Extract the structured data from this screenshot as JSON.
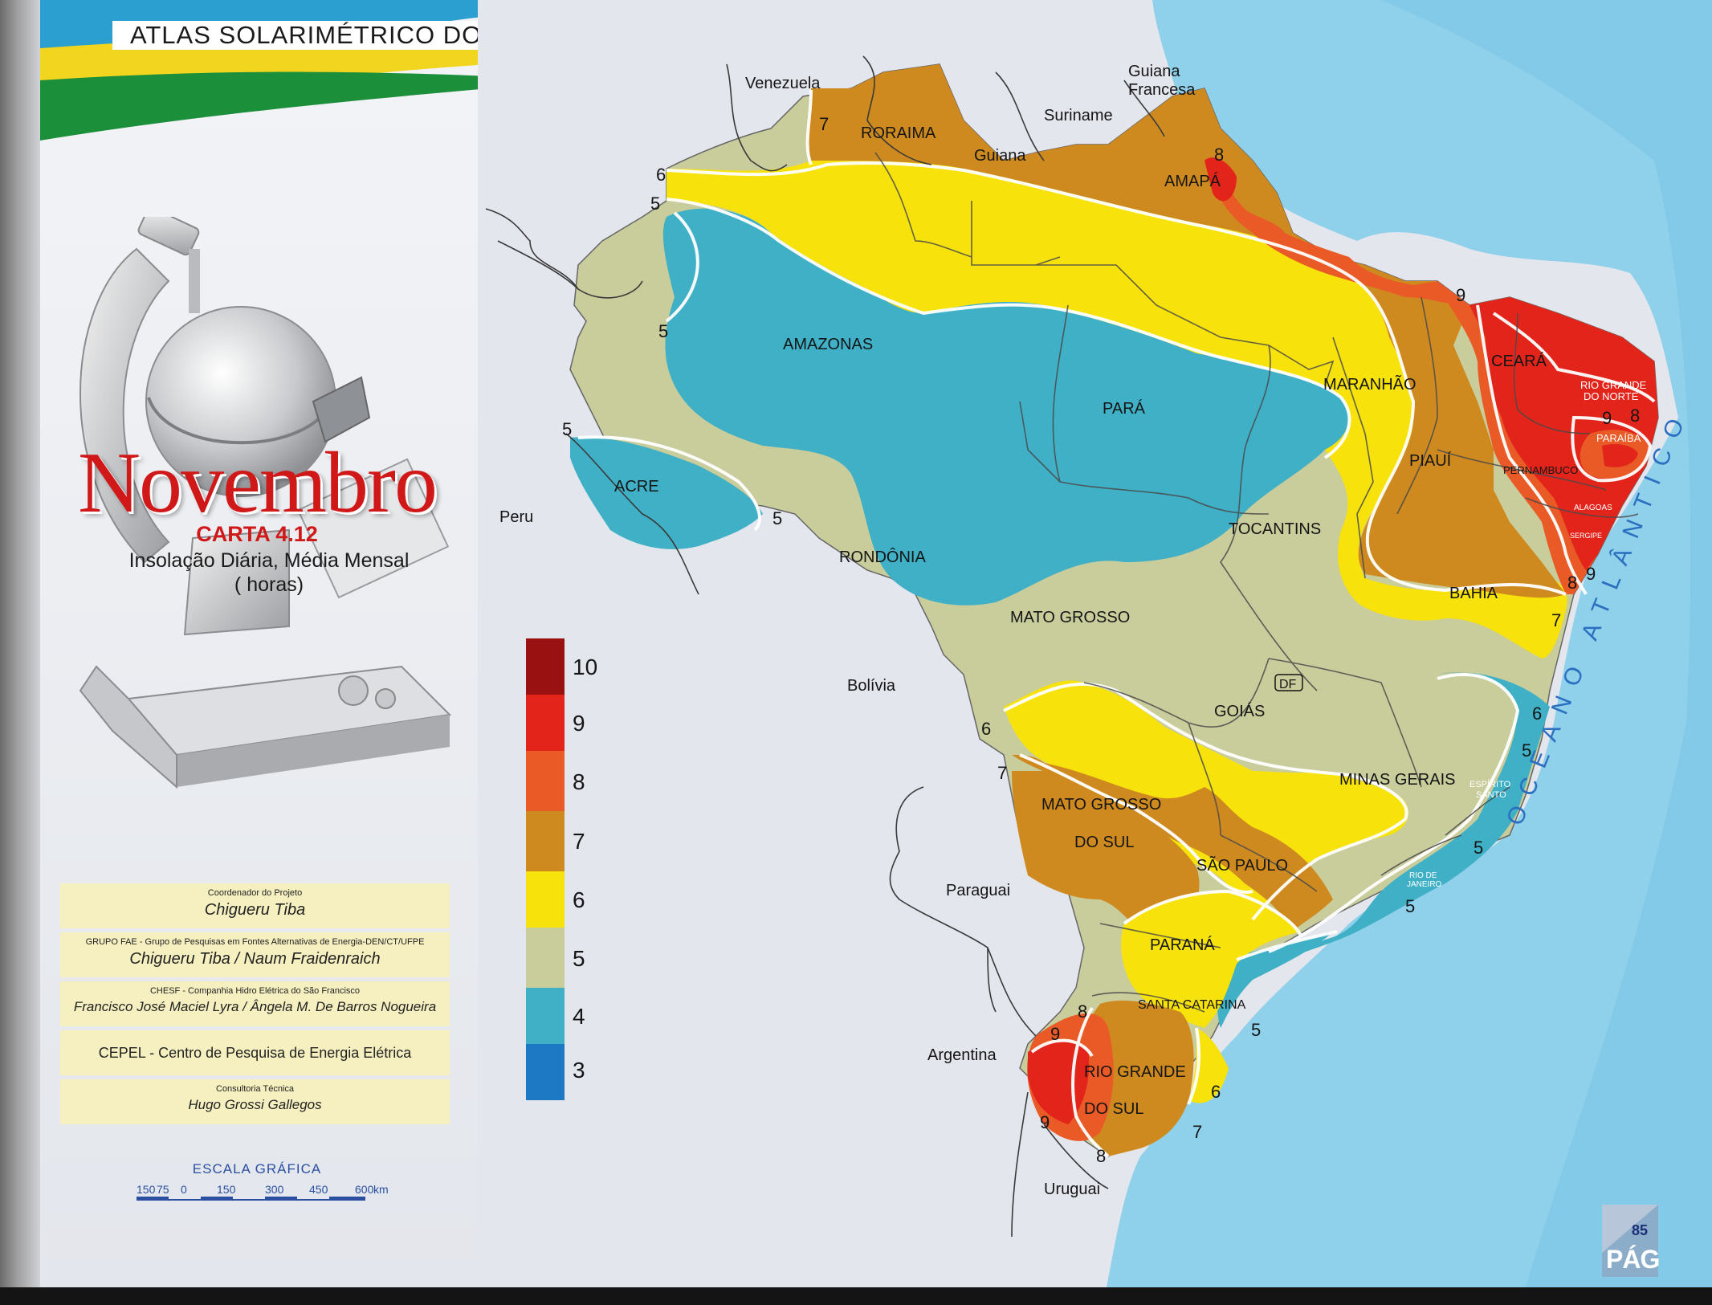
{
  "header": {
    "title": "ATLAS SOLARIMÉTRICO DO BRASIL"
  },
  "chart": {
    "month": "Novembro",
    "number": "CARTA 4.12",
    "subtitle_line1": "Insolação Diária, Média Mensal",
    "subtitle_line2": "( horas)"
  },
  "credits": [
    {
      "small": "Coordenador do Projeto",
      "big": "Chigueru  Tiba"
    },
    {
      "small": "GRUPO  FAE - Grupo de Pesquisas em Fontes Alternativas de Energia-DEN/CT/UFPE",
      "big": "Chigueru Tiba /   Naum  Fraidenraich"
    },
    {
      "small": "CHESF  -  Companhia Hidro Elétrica do São Francisco",
      "big": "Francisco José Maciel Lyra / Ângela M. De Barros Nogueira"
    },
    {
      "small": "",
      "big": "CEPEL - Centro de Pesquisa de Energia Elétrica"
    },
    {
      "small": "Consultoria Técnica",
      "big": "Hugo  Grossi Gallegos"
    }
  ],
  "scale": {
    "title": "ESCALA  GRÁFICA",
    "ticks": [
      "150",
      "75",
      "0",
      "150",
      "300",
      "450",
      "600"
    ],
    "unit": "km"
  },
  "legend": {
    "items": [
      {
        "value": "10",
        "color": "#9a1111"
      },
      {
        "value": "9",
        "color": "#e2241b"
      },
      {
        "value": "8",
        "color": "#ea5a26"
      },
      {
        "value": "7",
        "color": "#cf8a1f"
      },
      {
        "value": "6",
        "color": "#f7e20c"
      },
      {
        "value": "5",
        "color": "#c9cc9b"
      },
      {
        "value": "4",
        "color": "#3fb0c6"
      },
      {
        "value": "3",
        "color": "#1e79c4"
      }
    ]
  },
  "map": {
    "ocean": "OCEANO  ATLÂNTICO",
    "countries": {
      "venezuela": "Venezuela",
      "guiana_francesa_1": "Guiana",
      "guiana_francesa_2": "Francesa",
      "suriname": "Suriname",
      "guiana": "Guiana",
      "peru": "Peru",
      "bolivia": "Bolívia",
      "paraguai": "Paraguai",
      "argentina": "Argentina",
      "uruguai": "Uruguai"
    },
    "states": {
      "roraima": "RORAIMA",
      "amapa": "AMAPÁ",
      "amazonas": "AMAZONAS",
      "para": "PARÁ",
      "maranhao": "MARANHÃO",
      "ceara": "CEARÁ",
      "rn1": "RIO GRANDE",
      "rn2": "DO NORTE",
      "paraiba": "PARAÍBA",
      "pernambuco": "PERNAMBUCO",
      "alagoas": "ALAGOAS",
      "sergipe": "SERGIPE",
      "piaui": "PIAUÍ",
      "acre": "ACRE",
      "rondonia": "RONDÔNIA",
      "tocantins": "TOCANTINS",
      "bahia": "BAHIA",
      "mato_grosso": "MATO  GROSSO",
      "df": "DF",
      "goias": "GOIÁS",
      "minas": "MINAS  GERAIS",
      "es1": "ESPÍRITO",
      "es2": "SANTO",
      "ms1": "MATO  GROSSO",
      "ms2": "DO SUL",
      "sao_paulo": "SÃO  PAULO",
      "rj1": "RIO DE",
      "rj2": "JANEIRO",
      "parana": "PARANÁ",
      "santa_catarina": "SANTA CATARINA",
      "rs1": "RIO GRANDE",
      "rs2": "DO  SUL"
    },
    "isolines": [
      {
        "id": "iso-7-roraima",
        "text": "7"
      },
      {
        "id": "iso-6-nw",
        "text": "6"
      },
      {
        "id": "iso-5-nw",
        "text": "5"
      },
      {
        "id": "iso-5-amazon",
        "text": "5"
      },
      {
        "id": "iso-5-acre-n",
        "text": "5"
      },
      {
        "id": "iso-5-acre-e",
        "text": "5"
      },
      {
        "id": "iso-8-amapa",
        "text": "8"
      },
      {
        "id": "iso-9-ne",
        "text": "9"
      },
      {
        "id": "iso-9-rn",
        "text": "9"
      },
      {
        "id": "iso-8-rn",
        "text": "8"
      },
      {
        "id": "iso-9-se",
        "text": "9"
      },
      {
        "id": "iso-8-se",
        "text": "8"
      },
      {
        "id": "iso-7-bahia",
        "text": "7"
      },
      {
        "id": "iso-6-east",
        "text": "6"
      },
      {
        "id": "iso-5-east",
        "text": "5"
      },
      {
        "id": "iso-6-mt",
        "text": "6"
      },
      {
        "id": "iso-7-ms",
        "text": "7"
      },
      {
        "id": "iso-5-rj",
        "text": "5"
      },
      {
        "id": "iso-5-sp",
        "text": "5"
      },
      {
        "id": "iso-5-sc",
        "text": "5"
      },
      {
        "id": "iso-8-rs-n",
        "text": "8"
      },
      {
        "id": "iso-9-rs-n",
        "text": "9"
      },
      {
        "id": "iso-9-rs-s",
        "text": "9"
      },
      {
        "id": "iso-8-rs-s",
        "text": "8"
      },
      {
        "id": "iso-6-rs",
        "text": "6"
      },
      {
        "id": "iso-7-rs",
        "text": "7"
      }
    ]
  },
  "page": {
    "number": "85",
    "tag": "PÁG"
  }
}
